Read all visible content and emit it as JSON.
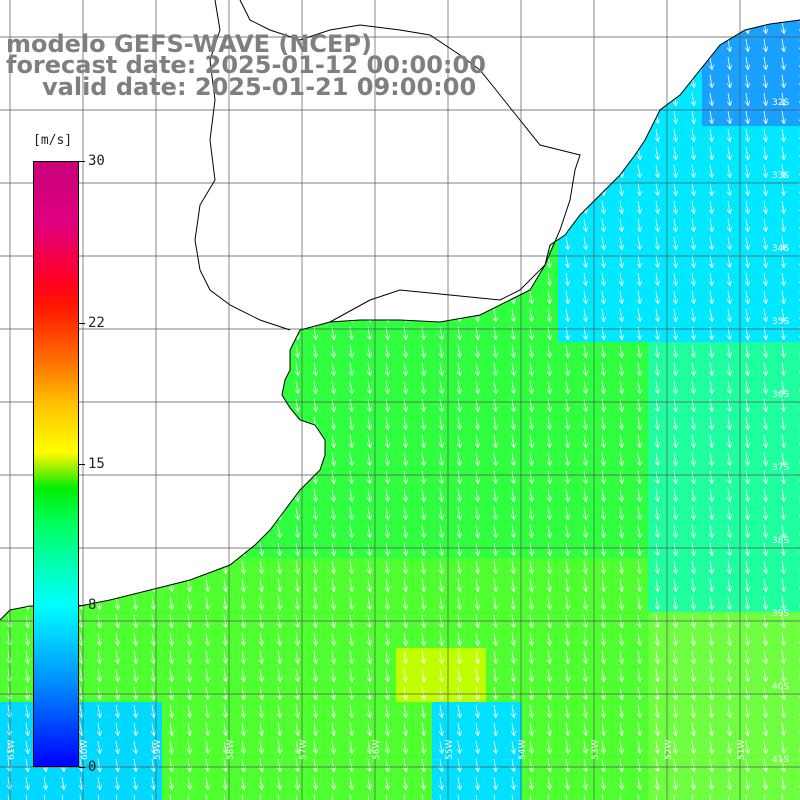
{
  "title": {
    "line1": "modelo GEFS-WAVE (NCEP)",
    "line2": "forecast date: 2025-01-12 00:00:00",
    "line3": "valid date: 2025-01-21 09:00:00"
  },
  "colorbar": {
    "unit": "[m/s]",
    "ticks": [
      "30",
      "22",
      "15",
      "8",
      "0"
    ],
    "tick_values": [
      30,
      22,
      15,
      8,
      0
    ],
    "range": [
      0,
      30
    ]
  },
  "lat_labels": [
    "32S",
    "33S",
    "34S",
    "35S",
    "36S",
    "37S",
    "38S",
    "39S",
    "40S",
    "41S"
  ],
  "lon_labels": [
    "61W",
    "60W",
    "59W",
    "58W",
    "57W",
    "56W",
    "55W",
    "54W",
    "53W",
    "52W",
    "51W"
  ],
  "colors": {
    "land": "#ffffff",
    "grid": "#555555",
    "coast": "#000000",
    "arrows": "#ffffff",
    "title": "#7f7f7f"
  }
}
